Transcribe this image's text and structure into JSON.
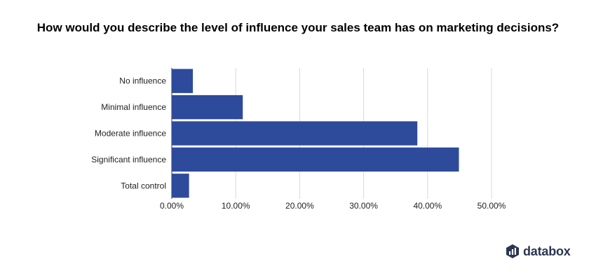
{
  "brand": {
    "name": "databox",
    "icon": "databox-logo-icon",
    "color": "#2a3551"
  },
  "chart_data": {
    "type": "bar",
    "orientation": "horizontal",
    "title": "How would you describe the level of influence your sales team has on marketing decisions?",
    "xlabel": "",
    "ylabel": "",
    "categories": [
      "No influence",
      "Minimal influence",
      "Moderate influence",
      "Significant influence",
      "Total control"
    ],
    "values": [
      3.3,
      11.1,
      38.4,
      44.9,
      2.7
    ],
    "xlim": [
      0,
      50
    ],
    "xticks": [
      0,
      10,
      20,
      30,
      40,
      50
    ],
    "tick_labels": [
      "0.00%",
      "10.00%",
      "20.00%",
      "30.00%",
      "40.00%",
      "50.00%"
    ],
    "bar_color": "#2e4a9b",
    "grid": true,
    "legend": "none"
  }
}
